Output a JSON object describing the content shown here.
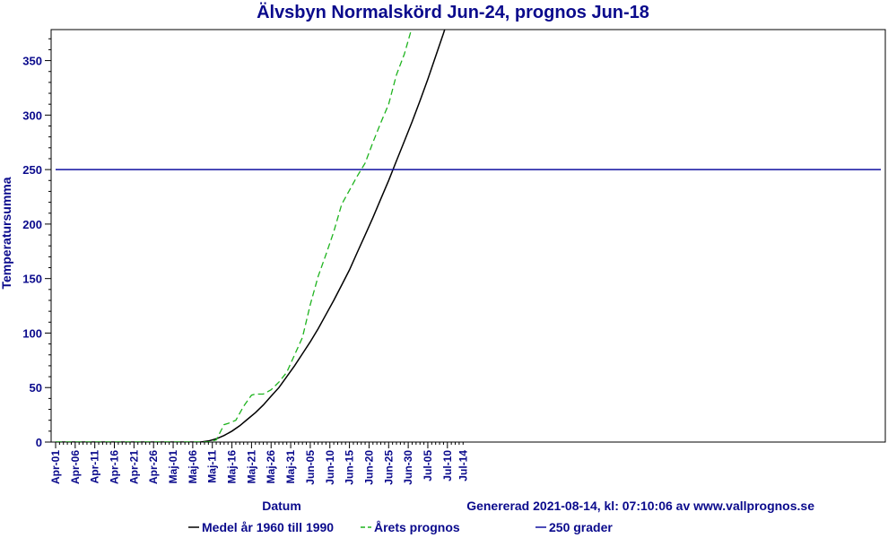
{
  "chart_data": {
    "type": "line",
    "title": "Älvsbyn Normalskörd Jun-24, prognos Jun-18",
    "xlabel": "Datum",
    "ylabel": "Temperatursumma",
    "footer": "Genererad 2021-08-14, kl: 07:10:06 av www.vallprognos.se",
    "x_ticks": [
      "Apr-01",
      "Apr-06",
      "Apr-11",
      "Apr-16",
      "Apr-21",
      "Apr-26",
      "Maj-01",
      "Maj-06",
      "Maj-11",
      "Maj-16",
      "Maj-21",
      "Maj-26",
      "Maj-31",
      "Jun-05",
      "Jun-10",
      "Jun-15",
      "Jun-20",
      "Jun-25",
      "Jun-30",
      "Jul-05",
      "Jul-10",
      "Jul-14"
    ],
    "y_ticks": [
      "0",
      "50",
      "100",
      "150",
      "200",
      "250",
      "300",
      "350"
    ],
    "ylim": [
      0,
      380
    ],
    "grid": false,
    "legend_position": "bottom",
    "series": [
      {
        "name": "Medel år 1960 till 1990",
        "color": "#000000",
        "style": "solid",
        "x": [
          "Apr-01",
          "Apr-11",
          "Apr-21",
          "May-01",
          "May-06",
          "May-08",
          "May-10",
          "May-12",
          "May-14",
          "May-16",
          "May-18",
          "May-20",
          "May-22",
          "May-24",
          "May-26",
          "May-28",
          "May-30",
          "Jun-01",
          "Jun-03",
          "Jun-05",
          "Jun-07",
          "Jun-09",
          "Jun-11",
          "Jun-13",
          "Jun-15",
          "Jun-17",
          "Jun-19",
          "Jun-21",
          "Jun-23",
          "Jun-25",
          "Jun-27",
          "Jun-29",
          "Jul-01",
          "Jul-03",
          "Jul-05",
          "Jul-07",
          "Jul-09",
          "Jul-10"
        ],
        "y": [
          0,
          0,
          0,
          0,
          0,
          0,
          1,
          3,
          6,
          10,
          15,
          21,
          27,
          34,
          42,
          50,
          60,
          70,
          81,
          92,
          104,
          117,
          130,
          144,
          158,
          174,
          190,
          206,
          223,
          240,
          258,
          276,
          294,
          313,
          333,
          354,
          375,
          386
        ]
      },
      {
        "name": "Årets prognos",
        "color": "#1db31d",
        "style": "dashed",
        "x": [
          "Apr-01",
          "Apr-11",
          "Apr-21",
          "May-01",
          "May-06",
          "May-08",
          "May-10",
          "May-12",
          "May-14",
          "May-15",
          "May-17",
          "May-19",
          "May-21",
          "May-22",
          "May-24",
          "May-26",
          "May-28",
          "May-30",
          "Jun-01",
          "Jun-03",
          "Jun-05",
          "Jun-07",
          "Jun-09",
          "Jun-11",
          "Jun-13",
          "Jun-15",
          "Jun-17",
          "Jun-19",
          "Jun-21",
          "Jun-23",
          "Jun-25",
          "Jun-27",
          "Jun-29",
          "Jul-01",
          "Jul-02"
        ],
        "y": [
          0,
          0,
          0,
          0,
          0,
          0,
          0,
          2,
          16,
          17,
          20,
          33,
          43,
          44,
          44,
          48,
          55,
          64,
          80,
          96,
          126,
          152,
          172,
          193,
          218,
          231,
          244,
          256,
          275,
          293,
          310,
          337,
          356,
          381,
          386
        ]
      },
      {
        "name": "250 grader",
        "color": "#1010a0",
        "style": "solid",
        "x": [
          "Apr-01",
          "Jul-14"
        ],
        "y": [
          250,
          250
        ]
      }
    ]
  }
}
